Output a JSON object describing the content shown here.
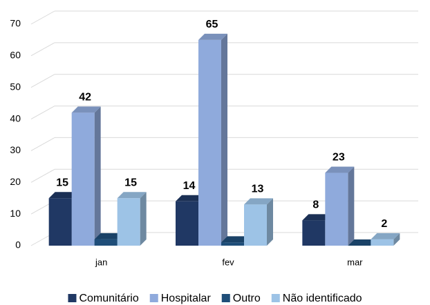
{
  "chart_data": {
    "type": "bar3d",
    "categories": [
      "jan",
      "fev",
      "mar"
    ],
    "series": [
      {
        "name": "Comunitário",
        "color": "#203864",
        "values": [
          15,
          14,
          8
        ],
        "data_labels": true
      },
      {
        "name": "Hospitalar",
        "color": "#8faadc",
        "values": [
          42,
          65,
          23
        ],
        "data_labels": true
      },
      {
        "name": "Outro",
        "color": "#1f4e79",
        "values": [
          2,
          1,
          0
        ],
        "data_labels": false
      },
      {
        "name": "Não identificado",
        "color": "#9dc3e6",
        "values": [
          15,
          13,
          2
        ],
        "data_labels": true
      }
    ],
    "ylim": [
      0,
      70
    ],
    "yticks": [
      0,
      10,
      20,
      30,
      40,
      50,
      60,
      70
    ],
    "grid": true,
    "legend": "bottom"
  }
}
